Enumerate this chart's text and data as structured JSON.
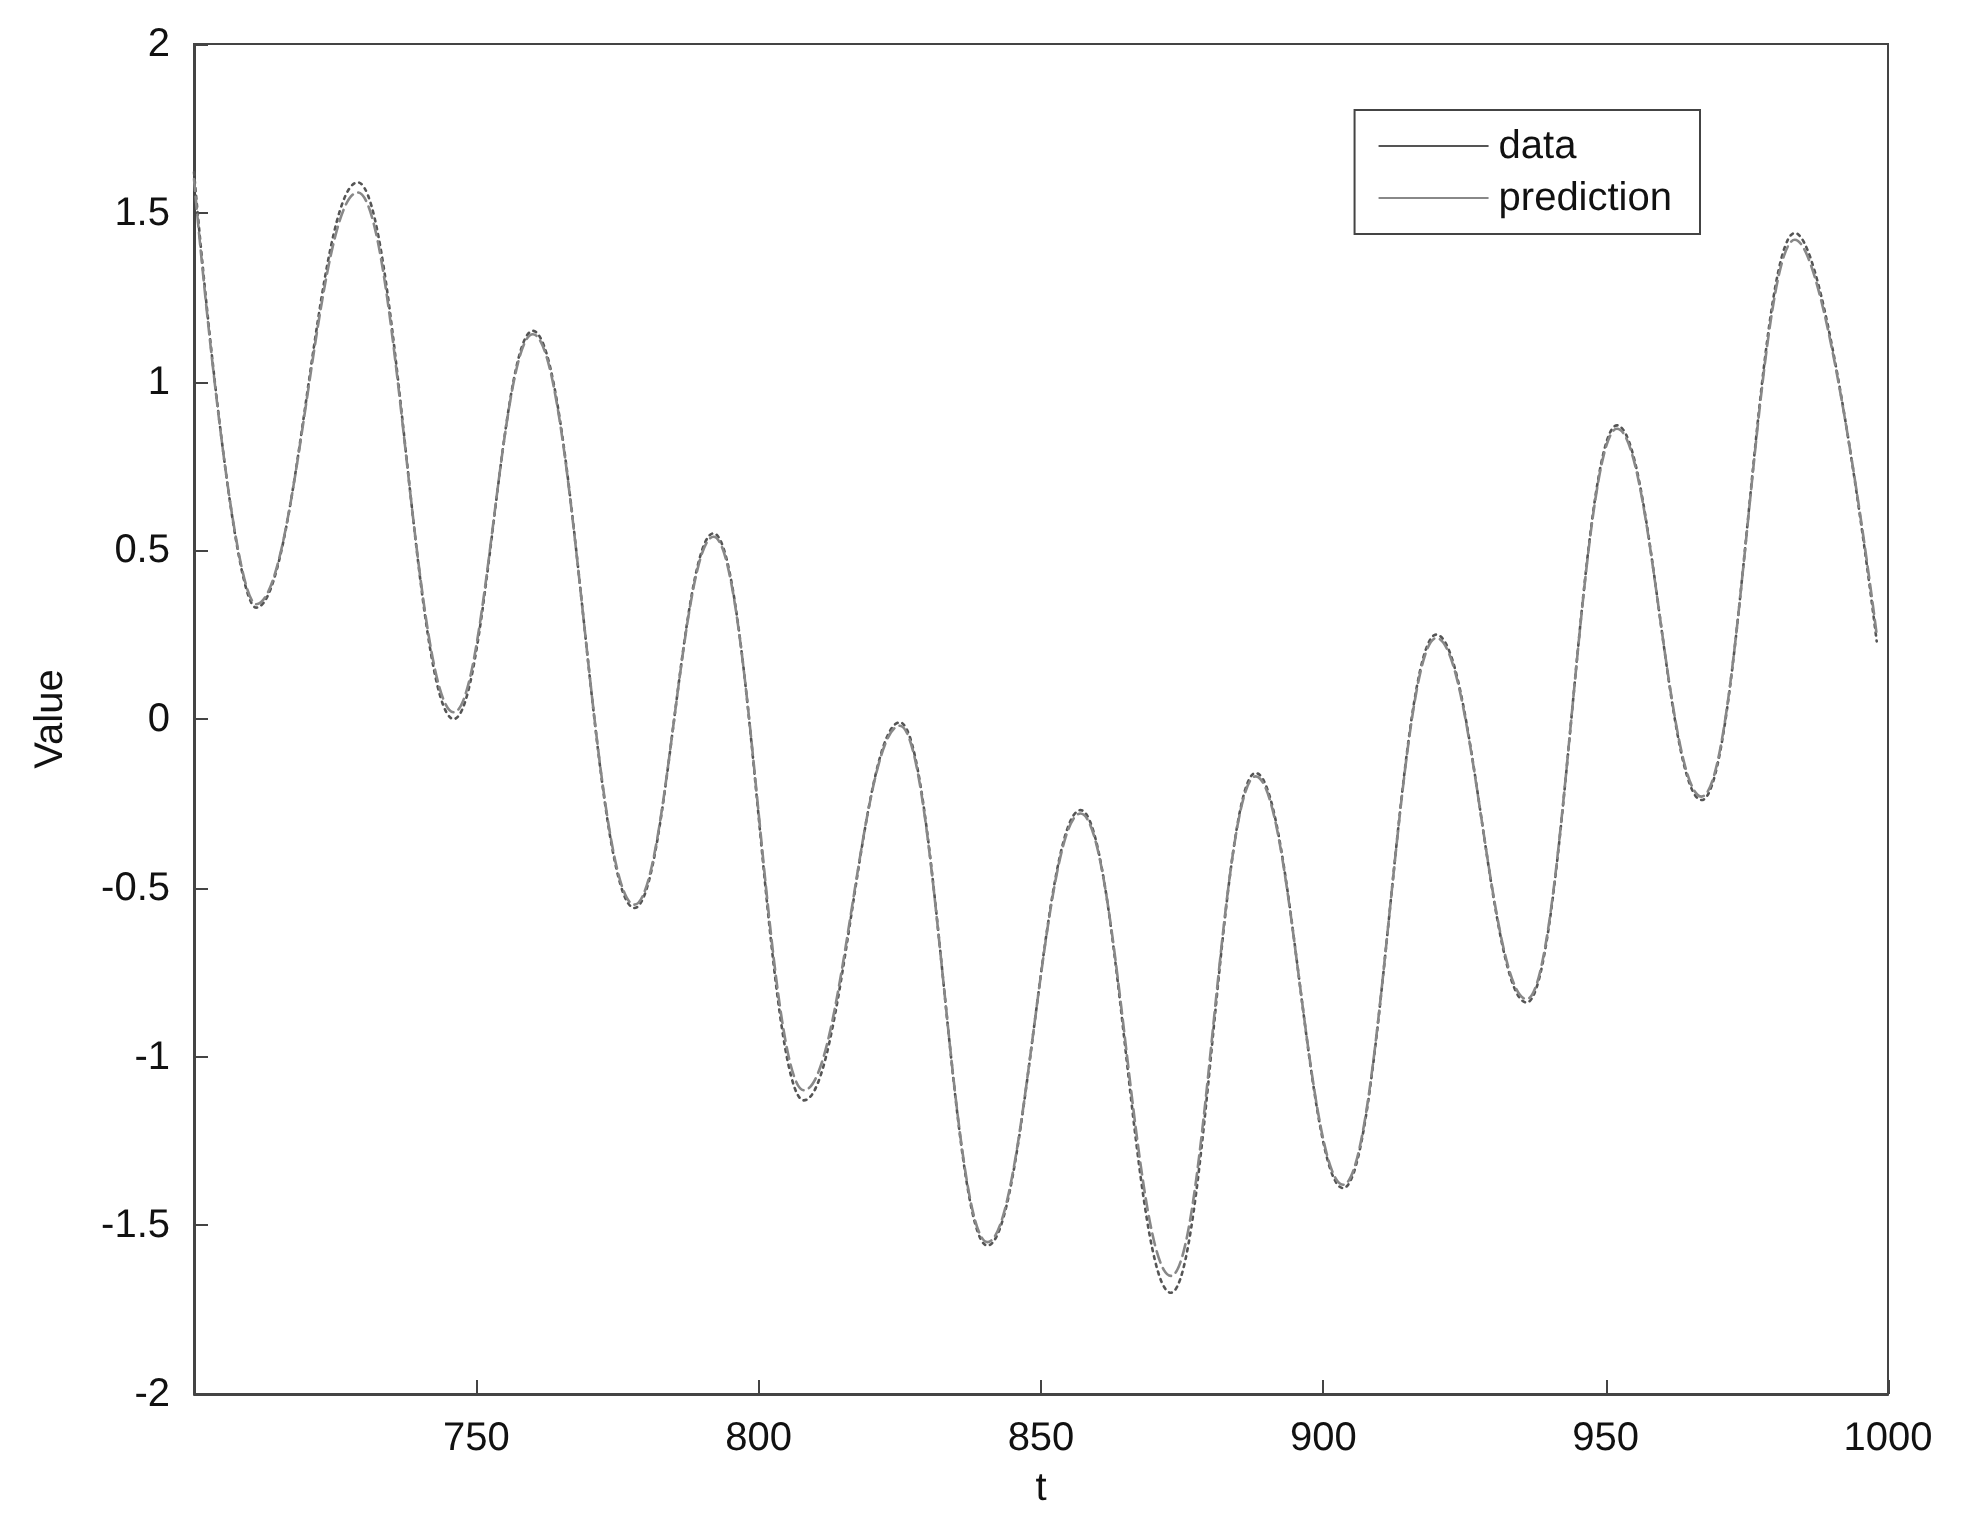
{
  "chart_data": {
    "type": "line",
    "xlabel": "t",
    "ylabel": "Value",
    "xlim": [
      700,
      1000
    ],
    "xticks": [
      750,
      800,
      850,
      900,
      950,
      1000
    ],
    "ylim": [
      -2,
      2
    ],
    "yticks": [
      -2,
      -1.5,
      -1,
      -0.5,
      0,
      0.5,
      1,
      1.5,
      2
    ],
    "grid": false,
    "legend": "top right",
    "marker": "none",
    "series": [
      {
        "name": "data",
        "color": "#555555",
        "line_style": "dotted",
        "x": [
          700,
          711,
          729,
          746,
          760,
          778,
          792,
          808,
          825,
          840.5,
          857,
          873,
          888,
          903.5,
          920,
          936,
          952,
          967,
          983.5,
          998
        ],
        "values": [
          1.62,
          0.33,
          1.59,
          0.0,
          1.15,
          -0.56,
          0.55,
          -1.13,
          -0.01,
          -1.56,
          -0.27,
          -1.7,
          -0.16,
          -1.39,
          0.25,
          -0.84,
          0.87,
          -0.24,
          1.44,
          0.23
        ]
      },
      {
        "name": "prediction",
        "color": "#888888",
        "line_style": "dashed",
        "x": [
          700,
          711,
          729,
          746,
          760,
          778,
          792,
          808,
          825,
          840.5,
          857,
          873,
          888,
          903.5,
          920,
          936,
          952,
          967,
          983.5,
          998
        ],
        "values": [
          1.6,
          0.34,
          1.56,
          0.02,
          1.14,
          -0.55,
          0.54,
          -1.1,
          -0.02,
          -1.55,
          -0.28,
          -1.65,
          -0.17,
          -1.38,
          0.24,
          -0.83,
          0.86,
          -0.23,
          1.42,
          0.25
        ]
      }
    ]
  }
}
